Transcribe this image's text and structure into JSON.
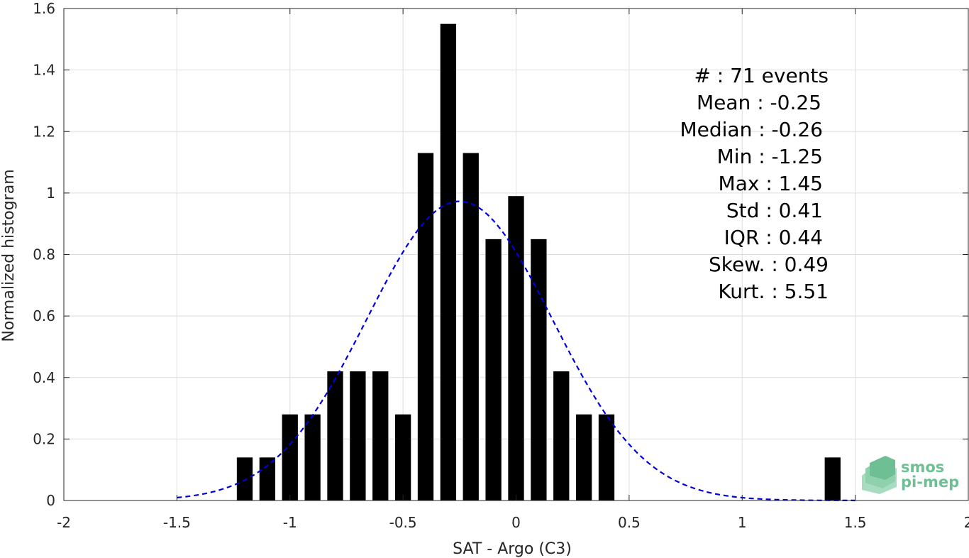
{
  "chart_data": {
    "type": "bar",
    "xlabel": "SAT - Argo (C3)",
    "ylabel": "Normalized histogram",
    "xlim": [
      -2,
      2
    ],
    "ylim": [
      0,
      1.6
    ],
    "x_ticks": [
      -2,
      -1.5,
      -1,
      -0.5,
      0,
      0.5,
      1,
      1.5,
      2
    ],
    "x_tick_labels": [
      "-2",
      "-1.5",
      "-1",
      "-0.5",
      "0",
      "0.5",
      "1",
      "1.5",
      "2"
    ],
    "y_ticks": [
      0,
      0.2,
      0.4,
      0.6,
      0.8,
      1,
      1.2,
      1.4,
      1.6
    ],
    "y_tick_labels": [
      "0",
      "0.2",
      "0.4",
      "0.6",
      "0.8",
      "1",
      "1.2",
      "1.4",
      "1.6"
    ],
    "grid": true,
    "bar_width": 0.07,
    "bar_color": "#000000",
    "series": [
      {
        "x": [
          -1.2,
          -1.1,
          -1.0,
          -0.9,
          -0.8,
          -0.7,
          -0.6,
          -0.5,
          -0.4,
          -0.3,
          -0.2,
          -0.1,
          0.0,
          0.1,
          0.2,
          0.3,
          0.4,
          1.4
        ],
        "values": [
          0.14,
          0.14,
          0.28,
          0.28,
          0.42,
          0.42,
          0.42,
          0.28,
          1.13,
          1.55,
          1.13,
          0.85,
          0.99,
          0.85,
          0.42,
          0.28,
          0.28,
          0.14
        ]
      }
    ],
    "fit": {
      "type": "gaussian",
      "mean": -0.25,
      "std": 0.41,
      "x_range": [
        -1.5,
        1.5
      ],
      "color": "#0000dd",
      "style": "dashed"
    },
    "stats": [
      {
        "label": "#  : 71 events"
      },
      {
        "label": "Mean : -0.25"
      },
      {
        "label": "Median : -0.26"
      },
      {
        "label": "Min : -1.25"
      },
      {
        "label": "Max : 1.45"
      },
      {
        "label": "Std : 0.41"
      },
      {
        "label": "IQR : 0.44"
      },
      {
        "label": "Skew. : 0.49"
      },
      {
        "label": "Kurt. : 5.51"
      }
    ]
  },
  "logo": {
    "line1": "smos",
    "line2": "pi-mep",
    "color": "#6fbf94"
  }
}
